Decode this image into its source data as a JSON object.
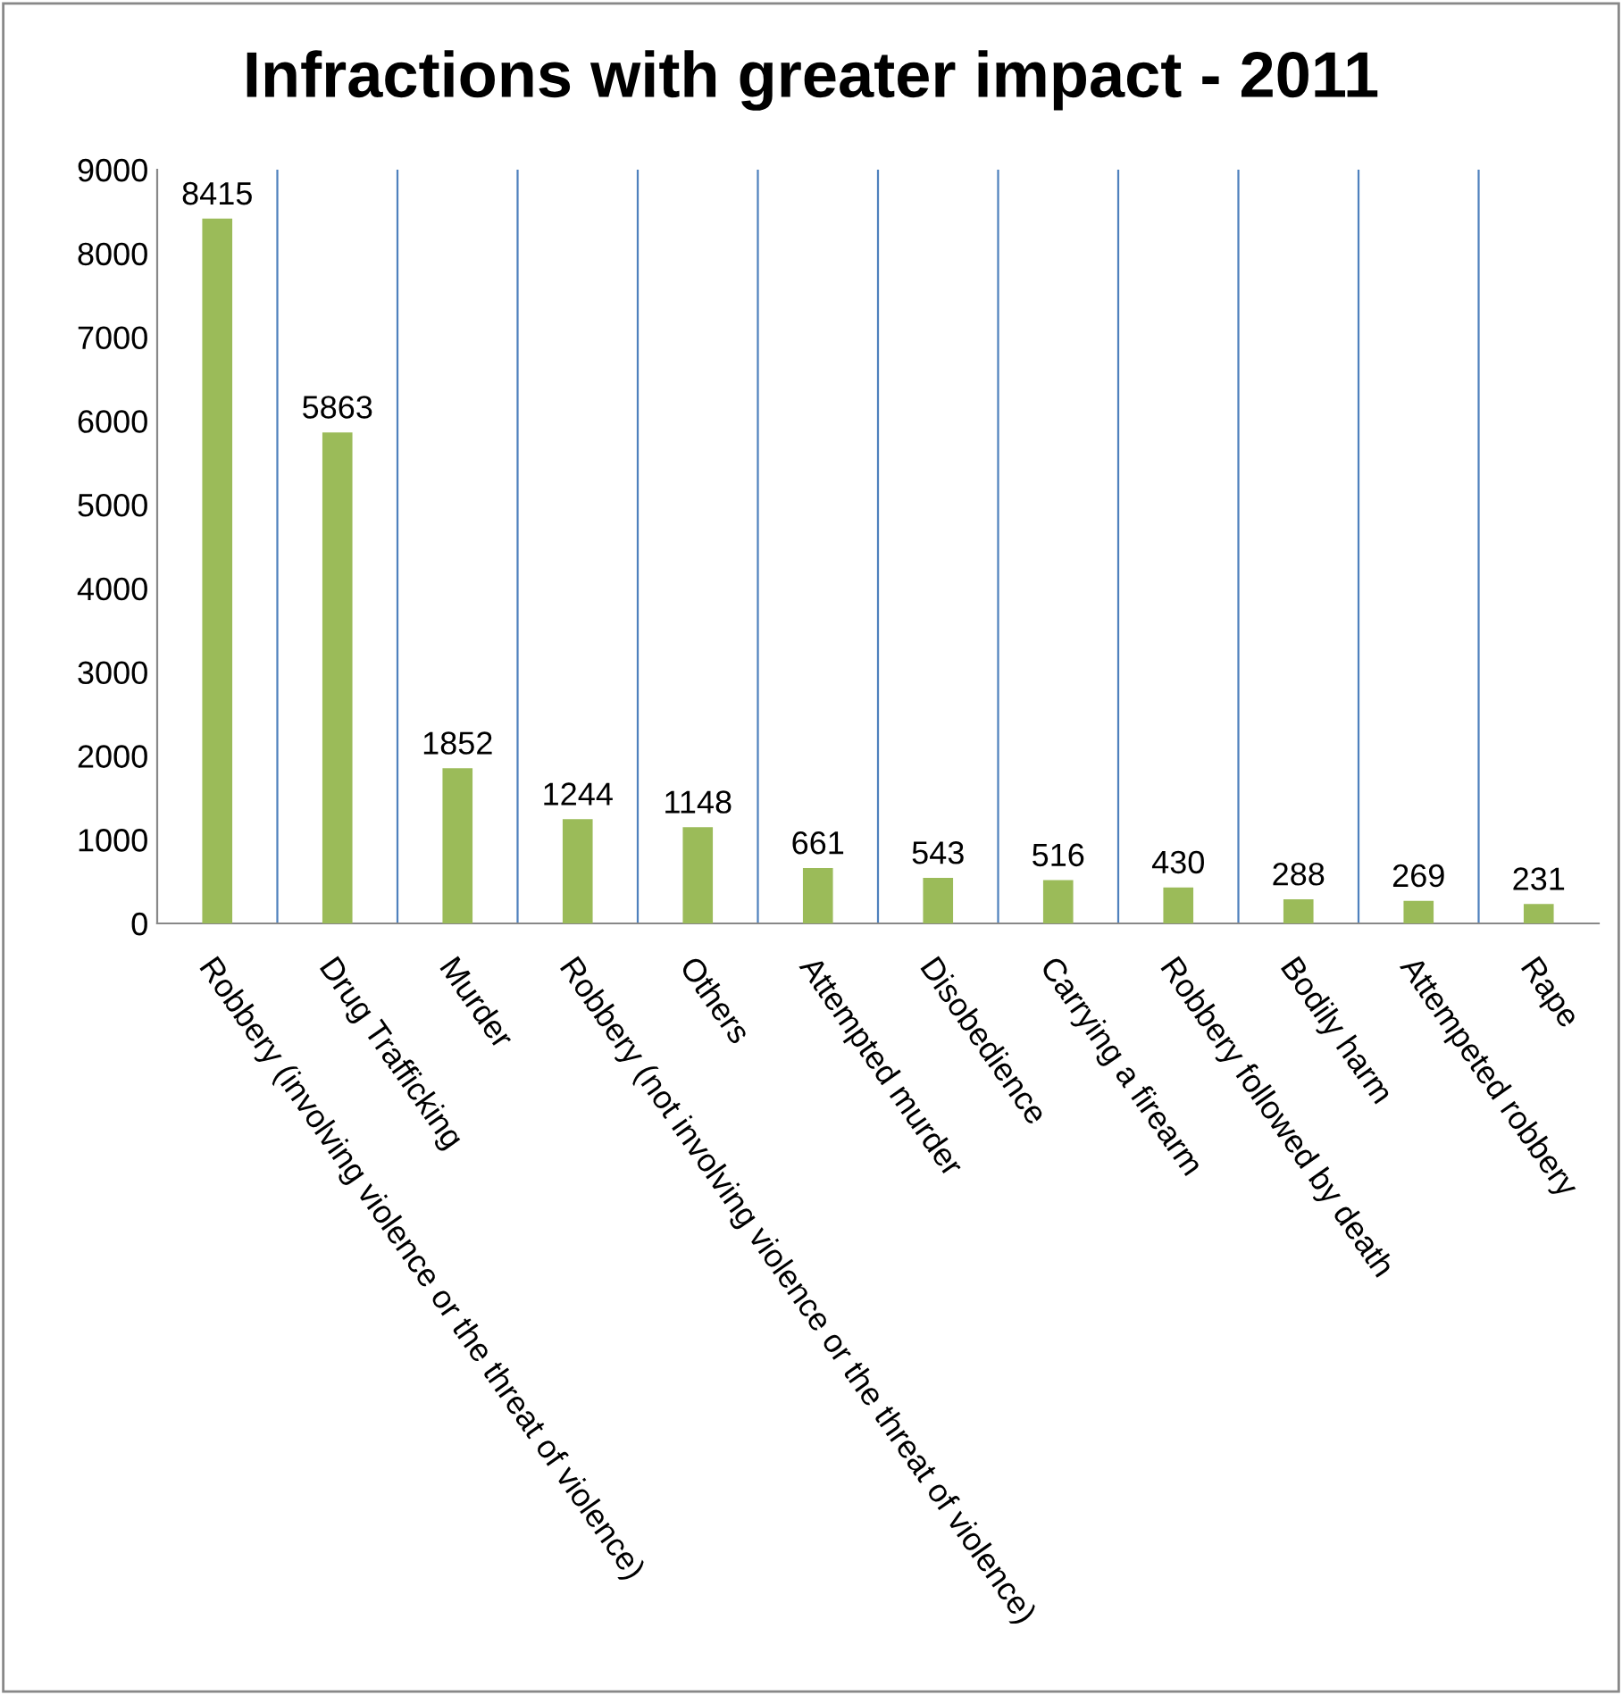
{
  "chart_data": {
    "type": "bar",
    "title": "Infractions with greater impact - 2011",
    "categories": [
      "Robbery (involving violence or the threat of violence)",
      "Drug Trafficking",
      "Murder",
      "Robbery (not involving violence or the threat of violence)",
      "Others",
      "Attempted murder",
      "Disobedience",
      "Carrying a firearm",
      "Robbery followed by death",
      "Bodily harm",
      "Attempeted robbery",
      "Rape"
    ],
    "values": [
      8415,
      5863,
      1852,
      1244,
      1148,
      661,
      543,
      516,
      430,
      288,
      269,
      231
    ],
    "color": "#9bbb59",
    "data_labels": true,
    "grid": "x",
    "legend": false,
    "ylim": [
      0,
      9000
    ],
    "yticks": [
      0,
      1000,
      2000,
      3000,
      4000,
      5000,
      6000,
      7000,
      8000,
      9000
    ]
  }
}
